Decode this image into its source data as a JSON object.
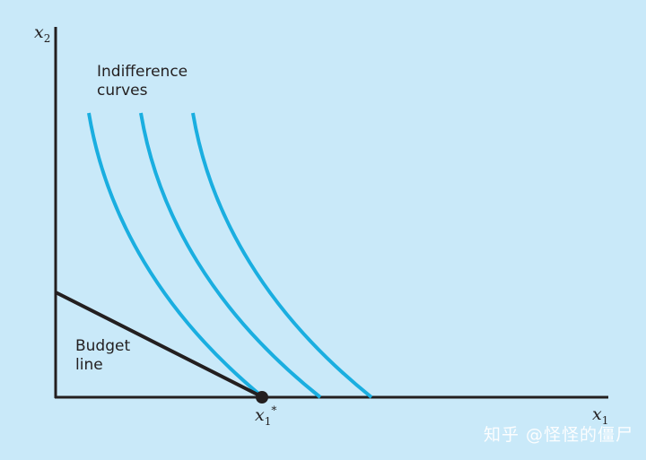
{
  "labels": {
    "indifference_line1": "Indifference",
    "indifference_line2": "curves",
    "budget_line1": "Budget",
    "budget_line2": "line",
    "x_axis_var": "x",
    "x_axis_sub": "1",
    "y_axis_var": "x",
    "y_axis_sub": "2",
    "optimum_var": "x",
    "optimum_sub": "1",
    "optimum_sup": "*"
  },
  "watermark": "知乎 @怪怪的僵尸",
  "colors": {
    "background": "#c9e9f9",
    "curves": "#1aaee0",
    "axes": "#231f20",
    "budget_line": "#231f20"
  },
  "curve_count": 3
}
